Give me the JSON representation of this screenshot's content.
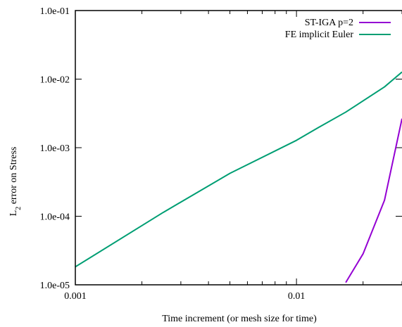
{
  "chart_data": {
    "type": "line",
    "title": "",
    "xlabel": "Time increment (or mesh size for time)",
    "ylabel_main": "L",
    "ylabel_sub": "2",
    "ylabel_rest": " error on Stress",
    "xscale": "log",
    "yscale": "log",
    "xlim": [
      0.001,
      0.03
    ],
    "ylim": [
      1e-05,
      0.1
    ],
    "xticks": [
      {
        "value": 0.001,
        "label": "0.001"
      },
      {
        "value": 0.01,
        "label": "0.01"
      }
    ],
    "yticks": [
      {
        "value": 1e-05,
        "label": "1.0e-05"
      },
      {
        "value": 0.0001,
        "label": "1.0e-04"
      },
      {
        "value": 0.001,
        "label": "1.0e-03"
      },
      {
        "value": 0.01,
        "label": "1.0e-02"
      },
      {
        "value": 0.1,
        "label": "1.0e-01"
      }
    ],
    "grid": false,
    "legend_position": "top-right",
    "series": [
      {
        "name": "ST-IGA p=2",
        "color": "#9400d3",
        "points": [
          [
            0.0167,
            1.08e-05
          ],
          [
            0.02,
            2.83e-05
          ],
          [
            0.025,
            0.000171
          ],
          [
            0.03,
            0.00265
          ]
        ]
      },
      {
        "name": "FE implicit Euler",
        "color": "#009e73",
        "points": [
          [
            0.001,
            1.83e-05
          ],
          [
            0.0025,
            0.000114
          ],
          [
            0.005,
            0.000422
          ],
          [
            0.01,
            0.00128
          ],
          [
            0.0125,
            0.00195
          ],
          [
            0.0167,
            0.0033
          ],
          [
            0.025,
            0.0077
          ],
          [
            0.03,
            0.0127
          ]
        ]
      }
    ]
  }
}
